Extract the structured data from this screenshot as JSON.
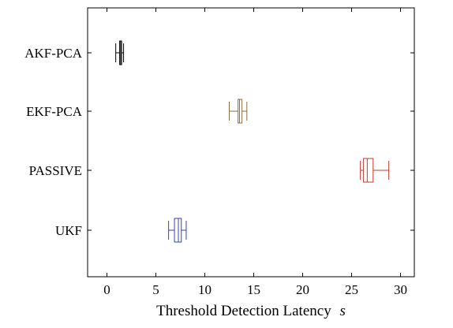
{
  "chart_data": {
    "type": "boxplot",
    "orientation": "horizontal",
    "xlabel": "Threshold Detection Latency",
    "xlabel_unit": "s",
    "xlim": [
      -2,
      31
    ],
    "xticks": [
      0,
      5,
      10,
      15,
      20,
      25,
      30
    ],
    "categories": [
      "AKF-PCA",
      "EKF-PCA",
      "PASSIVE",
      "UKF"
    ],
    "grid": false,
    "boxes": [
      {
        "label": "AKF-PCA",
        "color": "#000000",
        "whisker_low": 0.9,
        "q1": 1.3,
        "median": 1.4,
        "q3": 1.5,
        "whisker_high": 1.7
      },
      {
        "label": "EKF-PCA",
        "color": "#8b6d3f",
        "whisker_low": 12.5,
        "q1": 13.4,
        "median": 13.55,
        "q3": 13.8,
        "whisker_high": 14.3
      },
      {
        "label": "PASSIVE",
        "color": "#c0392b",
        "whisker_low": 25.9,
        "q1": 26.2,
        "median": 26.6,
        "q3": 27.2,
        "whisker_high": 28.8
      },
      {
        "label": "UKF",
        "color": "#3040c8",
        "whisker_low": 6.3,
        "q1": 6.9,
        "median": 7.3,
        "q3": 7.6,
        "whisker_high": 8.1
      }
    ]
  }
}
